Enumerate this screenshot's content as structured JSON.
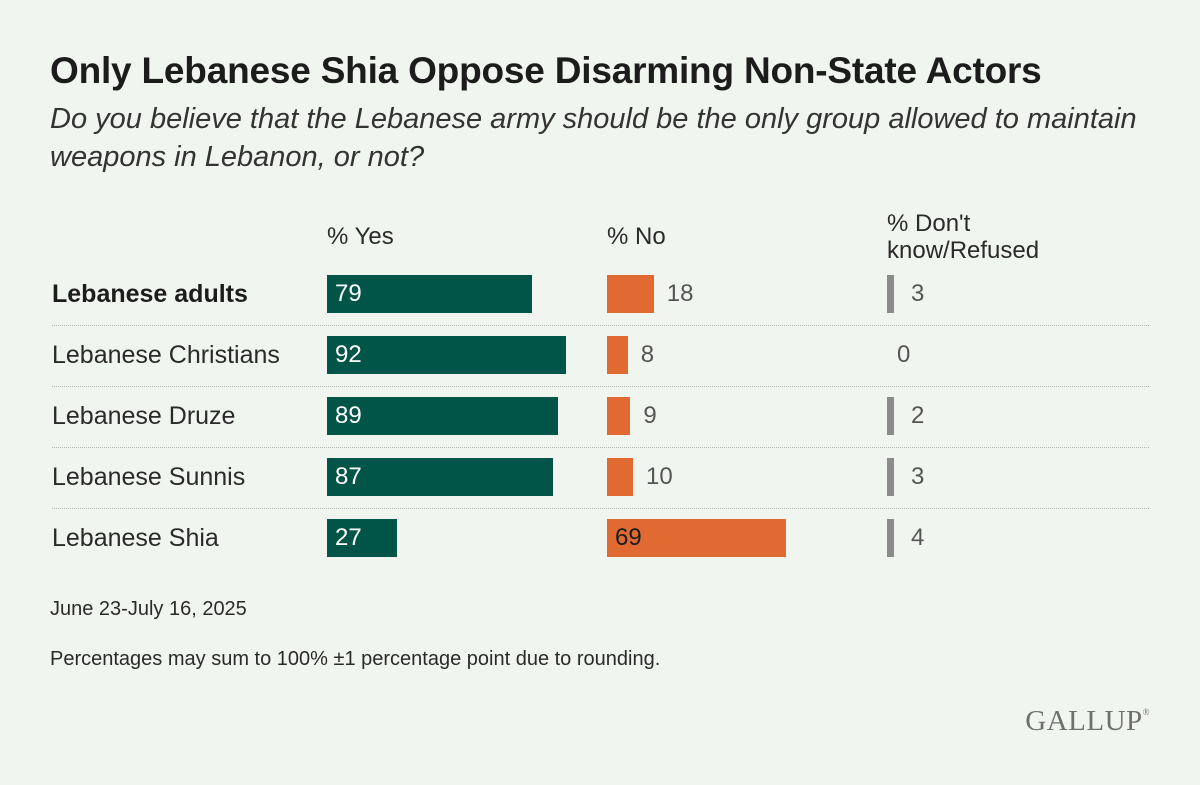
{
  "title": "Only Lebanese Shia Oppose Disarming Non-State Actors",
  "subtitle": "Do you believe that the Lebanese army should be the only group allowed to maintain weapons in Lebanon, or not?",
  "chart_data": {
    "type": "bar",
    "orientation": "horizontal",
    "categories": [
      "Lebanese adults",
      "Lebanese Christians",
      "Lebanese Druze",
      "Lebanese Sunnis",
      "Lebanese Shia"
    ],
    "series": [
      {
        "name": "% Yes",
        "values": [
          79,
          92,
          89,
          87,
          27
        ],
        "color": "#005448"
      },
      {
        "name": "% No",
        "values": [
          18,
          8,
          9,
          10,
          69
        ],
        "color": "#e06a32"
      },
      {
        "name": "% Don't know/Refused",
        "values": [
          3,
          0,
          2,
          3,
          4
        ],
        "color": "#8c8c8c"
      }
    ]
  },
  "footnotes": {
    "dates": "June 23-July 16, 2025",
    "note": "Percentages may sum to 100% ±1 percentage point due to rounding."
  },
  "logo": "GALLUP",
  "colors": {
    "background": "#f1f5ef"
  }
}
